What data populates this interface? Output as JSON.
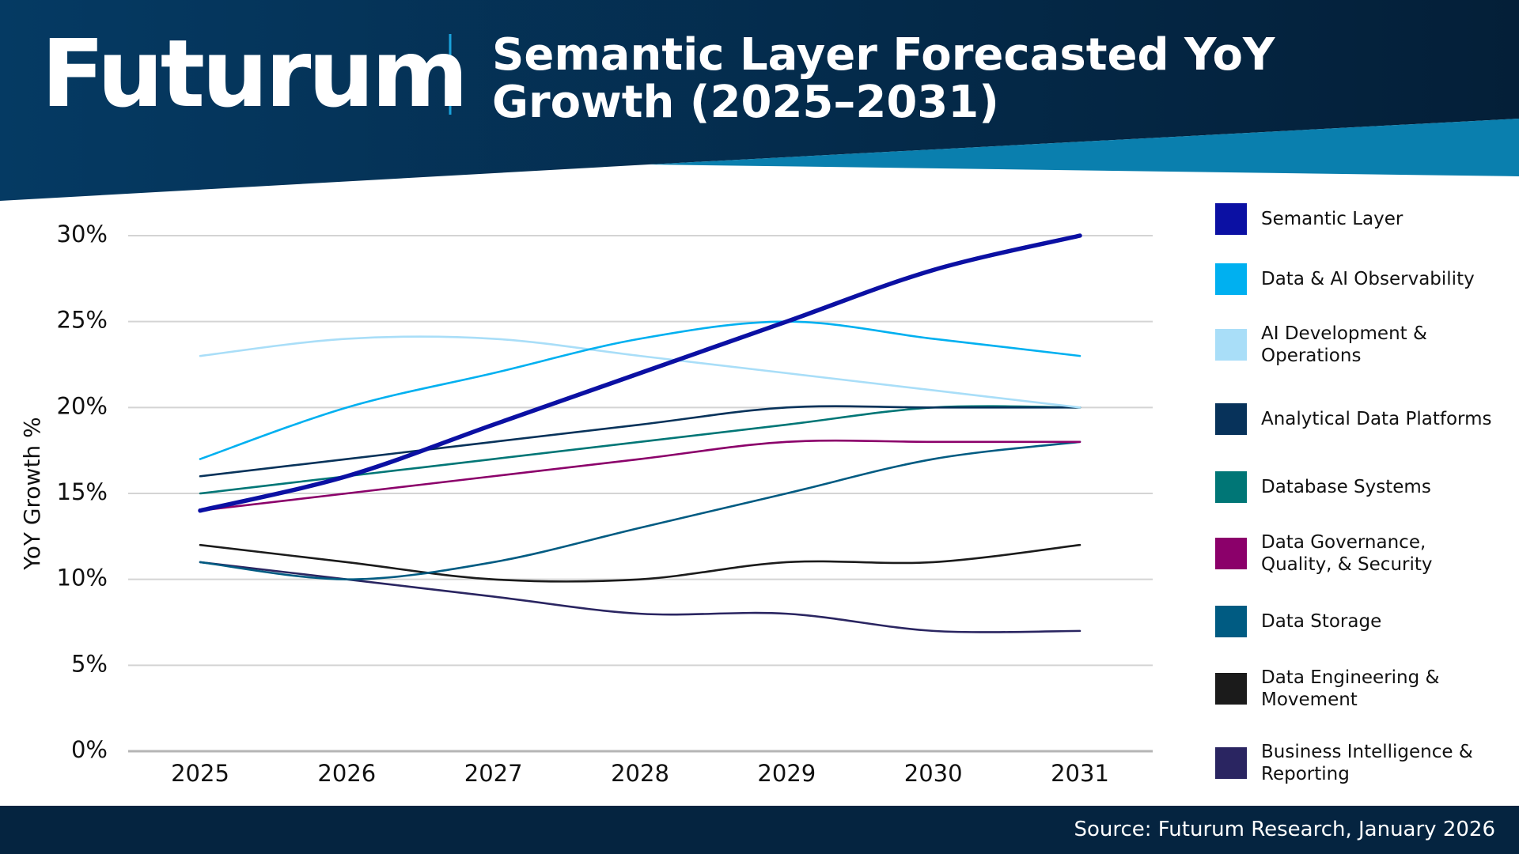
{
  "logo": "Futurum",
  "source": "Source: Futurum Research, January 2026",
  "chart_data": {
    "type": "line",
    "title": "Semantic Layer Forecasted YoY Growth (2025–2031)",
    "ylabel": "YoY Growth %",
    "categories": [
      "2025",
      "2026",
      "2027",
      "2028",
      "2029",
      "2030",
      "2031"
    ],
    "ylim": [
      0,
      30
    ],
    "yticks": [
      {
        "value": 0,
        "label": "0%"
      },
      {
        "value": 5,
        "label": "5%"
      },
      {
        "value": 10,
        "label": "10%"
      },
      {
        "value": 15,
        "label": "15%"
      },
      {
        "value": 20,
        "label": "20%"
      },
      {
        "value": 25,
        "label": "25%"
      },
      {
        "value": 30,
        "label": "30%"
      }
    ],
    "grid": true,
    "legend": "right",
    "series": [
      {
        "name": "Semantic Layer",
        "color": "#0b10a3",
        "values": [
          14,
          16,
          19,
          22,
          25,
          28,
          30
        ]
      },
      {
        "name": "Data & AI Observability",
        "color": "#00b0f0",
        "values": [
          17,
          20,
          22,
          24,
          25,
          24,
          23
        ]
      },
      {
        "name": "AI Development & Operations",
        "color": "#a9def8",
        "values": [
          23,
          24,
          24,
          23,
          22,
          21,
          20
        ]
      },
      {
        "name": "Analytical Data Platforms",
        "color": "#07325a",
        "values": [
          16,
          17,
          18,
          19,
          20,
          20,
          20
        ]
      },
      {
        "name": "Database Systems",
        "color": "#007676",
        "values": [
          15,
          16,
          17,
          18,
          19,
          20,
          20
        ]
      },
      {
        "name": "Data Governance, Quality, & Security",
        "color": "#8b006a",
        "values": [
          14,
          15,
          16,
          17,
          18,
          18,
          18
        ]
      },
      {
        "name": "Data Storage",
        "color": "#005b82",
        "values": [
          11,
          10,
          11,
          13,
          15,
          17,
          18
        ]
      },
      {
        "name": "Data Engineering & Movement",
        "color": "#1b1b1b",
        "values": [
          12,
          11,
          10,
          10,
          11,
          11,
          12
        ]
      },
      {
        "name": "Business Intelligence & Reporting",
        "color": "#2a2561",
        "values": [
          11,
          10,
          9,
          8,
          8,
          7,
          7
        ]
      }
    ]
  }
}
